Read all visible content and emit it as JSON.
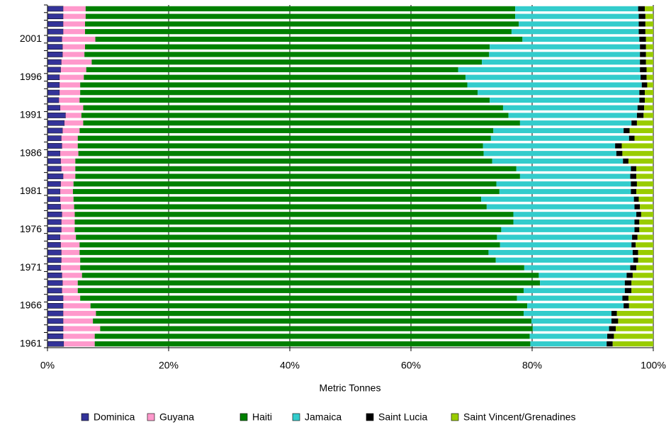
{
  "chart_data": {
    "type": "stacked_barh",
    "xlabel": "Metric Tonnes",
    "categories": [
      "1961",
      null,
      null,
      null,
      null,
      "1966",
      null,
      null,
      null,
      null,
      "1971",
      null,
      null,
      null,
      null,
      "1976",
      null,
      null,
      null,
      null,
      "1981",
      null,
      null,
      null,
      null,
      "1986",
      null,
      null,
      null,
      null,
      "1991",
      null,
      null,
      null,
      null,
      "1996",
      null,
      null,
      null,
      null,
      "2001",
      null,
      null,
      null,
      null
    ],
    "series": [
      {
        "name": "Dominica",
        "color": "#333399",
        "values": [
          2.7,
          2.6,
          2.6,
          2.6,
          2.6,
          2.6,
          2.6,
          2.4,
          2.5,
          2.4,
          2.2,
          2.3,
          2.3,
          2.2,
          2.1,
          2.3,
          2.3,
          2.4,
          2.2,
          2.1,
          2.1,
          2.2,
          2.6,
          2.3,
          2.2,
          2.1,
          2.4,
          2.3,
          2.5,
          2.8,
          3.0,
          2.1,
          1.9,
          2.0,
          2.0,
          2.0,
          2.2,
          2.3,
          2.5,
          2.5,
          2.4,
          2.6,
          2.6,
          2.6,
          2.6
        ]
      },
      {
        "name": "Guyana",
        "color": "#ff99cc",
        "values": [
          5.1,
          5.2,
          6.1,
          4.9,
          5.4,
          4.5,
          2.8,
          2.6,
          2.5,
          3.3,
          3.2,
          3.1,
          3.0,
          3.1,
          2.6,
          2.2,
          2.2,
          2.1,
          2.2,
          2.2,
          2.1,
          2.1,
          2.0,
          2.3,
          2.4,
          3.0,
          2.6,
          2.7,
          2.8,
          3.1,
          2.6,
          3.8,
          3.4,
          3.4,
          3.4,
          4.0,
          4.2,
          5.0,
          3.6,
          3.7,
          5.5,
          3.6,
          3.6,
          3.7,
          3.7
        ]
      },
      {
        "name": "Haiti",
        "color": "#008000",
        "values": [
          71.9,
          71.8,
          71.4,
          72.4,
          70.6,
          72.1,
          72.1,
          73.6,
          76.3,
          75.4,
          73.3,
          68.6,
          67.5,
          69.4,
          69.5,
          70.4,
          72.4,
          72.4,
          68.1,
          67.3,
          70.4,
          69.8,
          73.4,
          72.8,
          68.8,
          66.9,
          66.9,
          68.2,
          68.3,
          72.1,
          70.5,
          69.3,
          67.7,
          65.6,
          63.9,
          63.0,
          61.4,
          64.4,
          66.8,
          66.8,
          70.5,
          70.4,
          71.6,
          70.9,
          70.9
        ]
      },
      {
        "name": "Jamaica",
        "color": "#33cccc",
        "values": [
          12.6,
          12.8,
          12.6,
          13.2,
          14.5,
          15.9,
          17.4,
          16.7,
          14.0,
          14.5,
          17.5,
          22.7,
          23.8,
          21.7,
          22.3,
          22.0,
          20.0,
          20.3,
          24.4,
          25.2,
          21.7,
          22.2,
          18.2,
          18.9,
          21.6,
          21.9,
          21.8,
          22.8,
          21.5,
          18.4,
          21.2,
          22.2,
          24.7,
          26.7,
          28.8,
          28.9,
          30.0,
          26.1,
          24.9,
          24.8,
          19.3,
          21.0,
          19.8,
          20.4,
          20.3
        ]
      },
      {
        "name": "Saint Lucia",
        "color": "#000000",
        "values": [
          1.0,
          1.1,
          1.1,
          1.1,
          0.9,
          0.9,
          1.0,
          1.1,
          1.1,
          1.0,
          1.0,
          0.8,
          0.9,
          0.7,
          0.9,
          0.8,
          0.8,
          0.8,
          0.9,
          0.8,
          0.9,
          1.0,
          1.0,
          0.9,
          0.9,
          1.0,
          1.1,
          0.9,
          1.0,
          0.9,
          1.1,
          1.1,
          0.9,
          0.9,
          0.9,
          1.0,
          1.1,
          1.0,
          1.0,
          1.0,
          1.1,
          1.1,
          1.1,
          1.1,
          1.1
        ]
      },
      {
        "name": "Saint Vincent/Grenadines",
        "color": "#99cc00",
        "values": [
          6.7,
          6.5,
          6.2,
          5.8,
          6.0,
          4.0,
          4.1,
          3.6,
          3.6,
          3.4,
          2.8,
          2.5,
          2.5,
          2.9,
          2.6,
          2.3,
          2.3,
          2.0,
          2.2,
          2.4,
          2.8,
          2.7,
          2.8,
          2.8,
          4.1,
          5.1,
          5.2,
          3.1,
          3.9,
          2.7,
          1.6,
          1.5,
          1.4,
          1.4,
          1.0,
          1.1,
          1.1,
          1.2,
          1.2,
          1.2,
          1.2,
          1.3,
          1.3,
          1.3,
          1.4
        ]
      }
    ],
    "xlim": [
      0,
      100
    ],
    "xticks": [
      {
        "value": 0,
        "label": "0%"
      },
      {
        "value": 20,
        "label": "20%"
      },
      {
        "value": 40,
        "label": "40%"
      },
      {
        "value": 60,
        "label": "60%"
      },
      {
        "value": 80,
        "label": "80%"
      },
      {
        "value": 100,
        "label": "100%"
      }
    ],
    "grid": true,
    "legend": "bottom"
  }
}
